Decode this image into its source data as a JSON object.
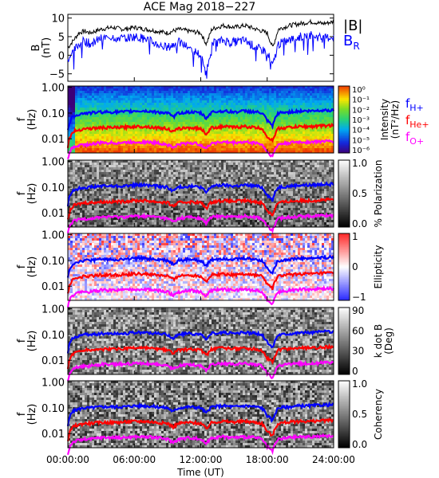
{
  "title": "ACE Mag 2018−227",
  "xlabel": "Time (UT)",
  "x_ticks": [
    "00:00:00",
    "06:00:00",
    "12:00:00",
    "18:00:00",
    "24:00:00"
  ],
  "colors": {
    "B_total": "#000000",
    "B_R": "#0000ff",
    "f_H": "#0000ff",
    "f_He": "#ff0000",
    "f_O": "#ff00ff"
  },
  "chart_data": [
    {
      "type": "line",
      "ylabel": [
        "B",
        "(nT)"
      ],
      "ylim": [
        -7,
        11
      ],
      "y_ticks": [
        "10",
        "5",
        "0",
        "−5"
      ],
      "x_hours": [
        0,
        0.5,
        1,
        1.5,
        2,
        3,
        4,
        5,
        6,
        7,
        8,
        9,
        10,
        11,
        12,
        12.5,
        13,
        14,
        15,
        16,
        17,
        18,
        18.5,
        19,
        20,
        21,
        22,
        23,
        24
      ],
      "series": [
        {
          "name": "|B|",
          "values": [
            2,
            4,
            6,
            6.5,
            6,
            7,
            7.5,
            7,
            7.5,
            7,
            6.5,
            6,
            7,
            6.5,
            6,
            3,
            7,
            8,
            7.5,
            8,
            7,
            6,
            2,
            7,
            8,
            8.5,
            9,
            8.5,
            9
          ]
        },
        {
          "name": "B_R",
          "values": [
            -1,
            1,
            3,
            4,
            3,
            4.5,
            5,
            4.5,
            5,
            4.5,
            3,
            2,
            3.5,
            2,
            0,
            -5,
            3,
            4,
            3.5,
            4,
            2,
            1,
            -3,
            3,
            4,
            5,
            5.5,
            4.5,
            5
          ]
        }
      ],
      "legend": [
        "|B|",
        "B_R"
      ]
    },
    {
      "type": "heatmap",
      "ylabel": [
        "f",
        "(Hz)"
      ],
      "y_ticks": [
        "1.00",
        "0.10",
        "0.01"
      ],
      "colorbar_label": [
        "Intensity",
        "(nT²/Hz)"
      ],
      "colorbar_ticks": [
        "10⁰",
        "10⁻¹",
        "10⁻²",
        "10⁻³",
        "10⁻⁴",
        "10⁻⁵",
        "10⁻⁶"
      ],
      "legend": [
        "f_H+",
        "f_He+",
        "f_O+"
      ]
    },
    {
      "type": "heatmap",
      "ylabel": [
        "f",
        "(Hz)"
      ],
      "y_ticks": [
        "1.00",
        "0.10",
        "0.01"
      ],
      "colorbar_label": [
        "% Polarization"
      ],
      "colorbar_ticks": [
        "1.0",
        "0.5",
        "0.0"
      ],
      "colorscale": "grayscale"
    },
    {
      "type": "heatmap",
      "ylabel": [
        "f",
        "(Hz)"
      ],
      "y_ticks": [
        "1.00",
        "0.10",
        "0.01"
      ],
      "colorbar_label": [
        "Ellipticity"
      ],
      "colorbar_ticks": [
        "1",
        "0",
        "−1"
      ],
      "colorscale": "blue-white-red"
    },
    {
      "type": "heatmap",
      "ylabel": [
        "f",
        "(Hz)"
      ],
      "y_ticks": [
        "1.00",
        "0.10",
        "0.01"
      ],
      "colorbar_label": [
        "k dot B",
        "(Deg)"
      ],
      "colorbar_ticks": [
        "90",
        "60",
        "30",
        "0"
      ],
      "colorscale": "grayscale"
    },
    {
      "type": "heatmap",
      "ylabel": [
        "f",
        "(Hz)"
      ],
      "y_ticks": [
        "1.00",
        "0.10",
        "0.01"
      ],
      "colorbar_label": [
        "Coherency"
      ],
      "colorbar_ticks": [
        "1.0",
        "0.5",
        "0.0"
      ],
      "colorscale": "grayscale"
    }
  ],
  "cyclotron_lines": {
    "x_hours": [
      0,
      0.3,
      0.6,
      1,
      1.5,
      2,
      3,
      4,
      5,
      6,
      7,
      8,
      9,
      9.5,
      10,
      11,
      12,
      12.5,
      13,
      14,
      15,
      16,
      17,
      17.5,
      18,
      18.5,
      19,
      20,
      21,
      22,
      23,
      24
    ],
    "f_H": [
      0.02,
      0.06,
      0.08,
      0.09,
      0.1,
      0.1,
      0.11,
      0.11,
      0.11,
      0.12,
      0.12,
      0.11,
      0.1,
      0.07,
      0.1,
      0.11,
      0.1,
      0.06,
      0.11,
      0.12,
      0.11,
      0.12,
      0.11,
      0.1,
      0.05,
      0.03,
      0.1,
      0.11,
      0.12,
      0.12,
      0.13,
      0.13
    ],
    "f_He": [
      0.005,
      0.015,
      0.02,
      0.022,
      0.025,
      0.025,
      0.027,
      0.027,
      0.028,
      0.03,
      0.03,
      0.027,
      0.025,
      0.018,
      0.025,
      0.027,
      0.025,
      0.015,
      0.027,
      0.03,
      0.028,
      0.03,
      0.027,
      0.025,
      0.012,
      0.008,
      0.025,
      0.028,
      0.03,
      0.03,
      0.032,
      0.033
    ],
    "f_O": [
      0.0015,
      0.004,
      0.005,
      0.0055,
      0.006,
      0.006,
      0.007,
      0.007,
      0.007,
      0.0075,
      0.0075,
      0.007,
      0.006,
      0.0045,
      0.006,
      0.007,
      0.006,
      0.004,
      0.007,
      0.0075,
      0.007,
      0.0075,
      0.007,
      0.006,
      0.003,
      0.002,
      0.006,
      0.007,
      0.0075,
      0.0075,
      0.008,
      0.008
    ]
  }
}
